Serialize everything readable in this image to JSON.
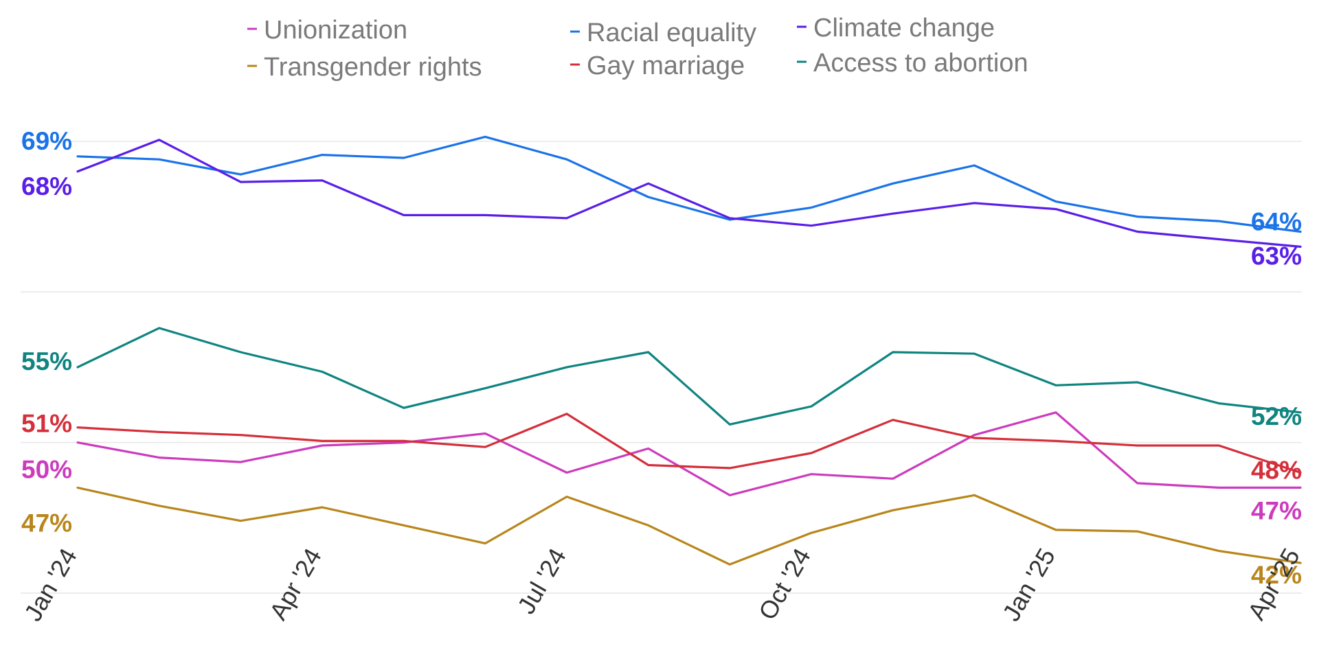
{
  "chart_data": {
    "type": "line",
    "title": "",
    "xlabel": "",
    "ylabel": "",
    "x": [
      "2024-01",
      "2024-02",
      "2024-03",
      "2024-04",
      "2024-05",
      "2024-06",
      "2024-07",
      "2024-08",
      "2024-09",
      "2024-10",
      "2024-11",
      "2024-12",
      "2025-01",
      "2025-02",
      "2025-03",
      "2025-04"
    ],
    "x_tick_labels": [
      "Jan '24",
      "Apr '24",
      "Jul '24",
      "Oct '24",
      "Jan '25",
      "Apr '25"
    ],
    "x_tick_positions": [
      "2024-01",
      "2024-04",
      "2024-07",
      "2024-10",
      "2025-01",
      "2025-04"
    ],
    "ylim": [
      40,
      72
    ],
    "grid": true,
    "legend_position": "top",
    "series": [
      {
        "name": "Unionization",
        "color": "#cc3bbd",
        "values": [
          50,
          49,
          48.7,
          49.8,
          50,
          50.6,
          48,
          49.6,
          46.5,
          47.9,
          47.6,
          50.5,
          52,
          47.3,
          47,
          47
        ],
        "start_label": "50%",
        "end_label": "47%"
      },
      {
        "name": "Racial equality",
        "color": "#1a73e8",
        "values": [
          69,
          68.8,
          67.8,
          69.1,
          68.9,
          70.3,
          68.8,
          66.3,
          64.8,
          65.6,
          67.2,
          68.4,
          66,
          65,
          64.7,
          64
        ],
        "start_label": "69%",
        "end_label": "64%"
      },
      {
        "name": "Climate change",
        "color": "#5a1ee8",
        "values": [
          68,
          70.1,
          67.3,
          67.4,
          65.1,
          65.1,
          64.9,
          67.2,
          64.9,
          64.4,
          65.2,
          65.9,
          65.5,
          64,
          63.5,
          63
        ],
        "start_label": "68%",
        "end_label": "63%"
      },
      {
        "name": "Transgender rights",
        "color": "#b8861b",
        "values": [
          47,
          45.8,
          44.8,
          45.7,
          44.5,
          43.3,
          46.4,
          44.5,
          41.9,
          44,
          45.5,
          46.5,
          44.2,
          44.1,
          42.8,
          42
        ],
        "start_label": "47%",
        "end_label": "42%"
      },
      {
        "name": "Gay marriage",
        "color": "#d42f3a",
        "values": [
          51,
          50.7,
          50.5,
          50.1,
          50.1,
          49.7,
          51.9,
          48.5,
          48.3,
          49.3,
          51.5,
          50.3,
          50.1,
          49.8,
          49.8,
          48
        ],
        "start_label": "51%",
        "end_label": "48%"
      },
      {
        "name": "Access to abortion",
        "color": "#0f8480",
        "values": [
          55,
          57.6,
          56,
          54.7,
          52.3,
          53.6,
          55,
          56,
          51.2,
          52.4,
          56,
          55.9,
          53.8,
          54,
          52.6,
          52
        ],
        "start_label": "55%",
        "end_label": "52%"
      }
    ],
    "legend": [
      {
        "name": "Unionization",
        "color": "#cc3bbd"
      },
      {
        "name": "Racial equality",
        "color": "#1a73e8"
      },
      {
        "name": "Climate change",
        "color": "#5a1ee8"
      },
      {
        "name": "Transgender rights",
        "color": "#b8861b"
      },
      {
        "name": "Gay marriage",
        "color": "#d42f3a"
      },
      {
        "name": "Access to abortion",
        "color": "#0f8480"
      }
    ]
  }
}
